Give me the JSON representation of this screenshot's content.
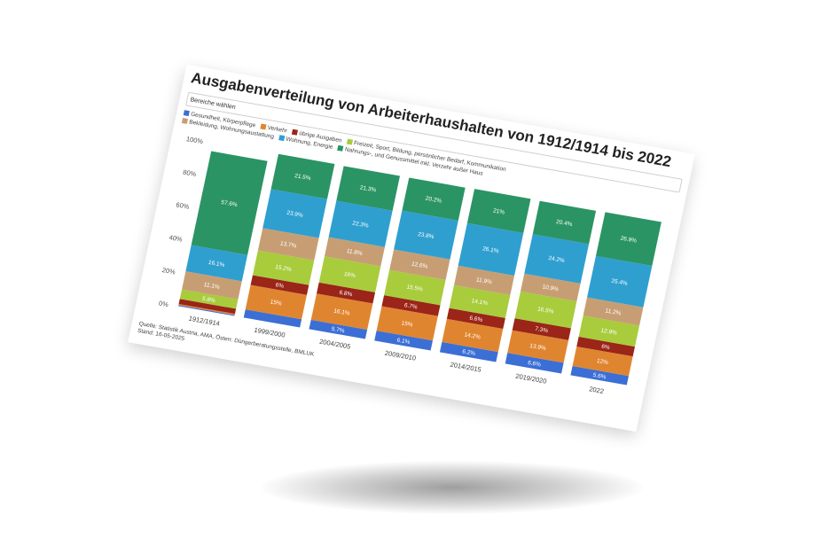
{
  "title": "Ausgabenverteilung von Arbeiterhaushalten von 1912/1914 bis 2022",
  "selector_label": "Bereiche wählen",
  "legend": [
    {
      "label": "Gesundheit, Körperpflege",
      "color": "#3b6fd6"
    },
    {
      "label": "Verkehr",
      "color": "#e0852f"
    },
    {
      "label": "übrige Ausgaben",
      "color": "#9a2518"
    },
    {
      "label": "Freizeit, Sport, Bildung, persönlicher Bedarf, Kommunikation",
      "color": "#a8cc3c"
    },
    {
      "label": "Bekleidung, Wohnungsaustattung",
      "color": "#c79e74"
    },
    {
      "label": "Wohnung, Energie",
      "color": "#2f9fd0"
    },
    {
      "label": "Nahrungs-, und Genussmittel inkl. Verzehr außer Haus",
      "color": "#2b9464"
    }
  ],
  "source_line1": "Quelle: Statistik Austria, AMA, Österr. Düngerberatungsstelle, BMLUK",
  "source_line2": "Stand: 16-05-2025",
  "chart_data": {
    "type": "bar",
    "stacked": true,
    "ylim": [
      0,
      100
    ],
    "yticks": [
      "0%",
      "20%",
      "40%",
      "60%",
      "80%",
      "100%"
    ],
    "categories": [
      "1912/1914",
      "1999/2000",
      "2004/2005",
      "2009/2010",
      "2014/2015",
      "2019/2020",
      "2022"
    ],
    "series": [
      {
        "name": "Gesundheit, Körperpflege",
        "color": "#3b6fd6",
        "values": [
          0.6,
          5.0,
          5.7,
          6.1,
          6.2,
          6.6,
          5.6
        ],
        "labels": [
          "",
          "",
          "5.7%",
          "6.1%",
          "6.2%",
          "6.6%",
          "5.6%"
        ]
      },
      {
        "name": "Verkehr",
        "color": "#e0852f",
        "values": [
          0.7,
          15,
          16.1,
          15,
          14.2,
          13.9,
          12
        ],
        "labels": [
          "",
          "15%",
          "16.1%",
          "15%",
          "14.2%",
          "13.9%",
          "12%"
        ]
      },
      {
        "name": "übrige Ausgaben",
        "color": "#9a2518",
        "values": [
          3.1,
          6,
          6.8,
          6.7,
          6.6,
          7.3,
          6
        ],
        "labels": [
          "",
          "6%",
          "6.8%",
          "6.7%",
          "6.6%",
          "7.3%",
          "6%"
        ]
      },
      {
        "name": "Freizeit, Sport, Bildung, persönlicher Bedarf, Kommunikation",
        "color": "#a8cc3c",
        "values": [
          5.8,
          15.2,
          16,
          15.5,
          14.1,
          16.5,
          12.9
        ],
        "labels": [
          "5.8%",
          "15.2%",
          "16%",
          "15.5%",
          "14.1%",
          "16.5%",
          "12.9%"
        ]
      },
      {
        "name": "Bekleidung, Wohnungsaustattung",
        "color": "#c79e74",
        "values": [
          11.1,
          13.7,
          11.8,
          12.6,
          11.9,
          10.9,
          11.2
        ],
        "labels": [
          "11.1%",
          "13.7%",
          "11.8%",
          "12.6%",
          "11.9%",
          "10.9%",
          "11.2%"
        ]
      },
      {
        "name": "Wohnung, Energie",
        "color": "#2f9fd0",
        "values": [
          16.1,
          23.9,
          22.3,
          23.8,
          26.1,
          24.2,
          25.4
        ],
        "labels": [
          "16.1%",
          "23.9%",
          "22.3%",
          "23.8%",
          "26.1%",
          "24.2%",
          "25.4%"
        ]
      },
      {
        "name": "Nahrungs-, und Genussmittel inkl. Verzehr außer Haus",
        "color": "#2b9464",
        "values": [
          57.6,
          21.5,
          21.3,
          20.2,
          21,
          20.4,
          26.9
        ],
        "labels": [
          "57.6%",
          "21.5%",
          "21.3%",
          "20.2%",
          "21%",
          "20.4%",
          "26.9%"
        ]
      }
    ]
  }
}
